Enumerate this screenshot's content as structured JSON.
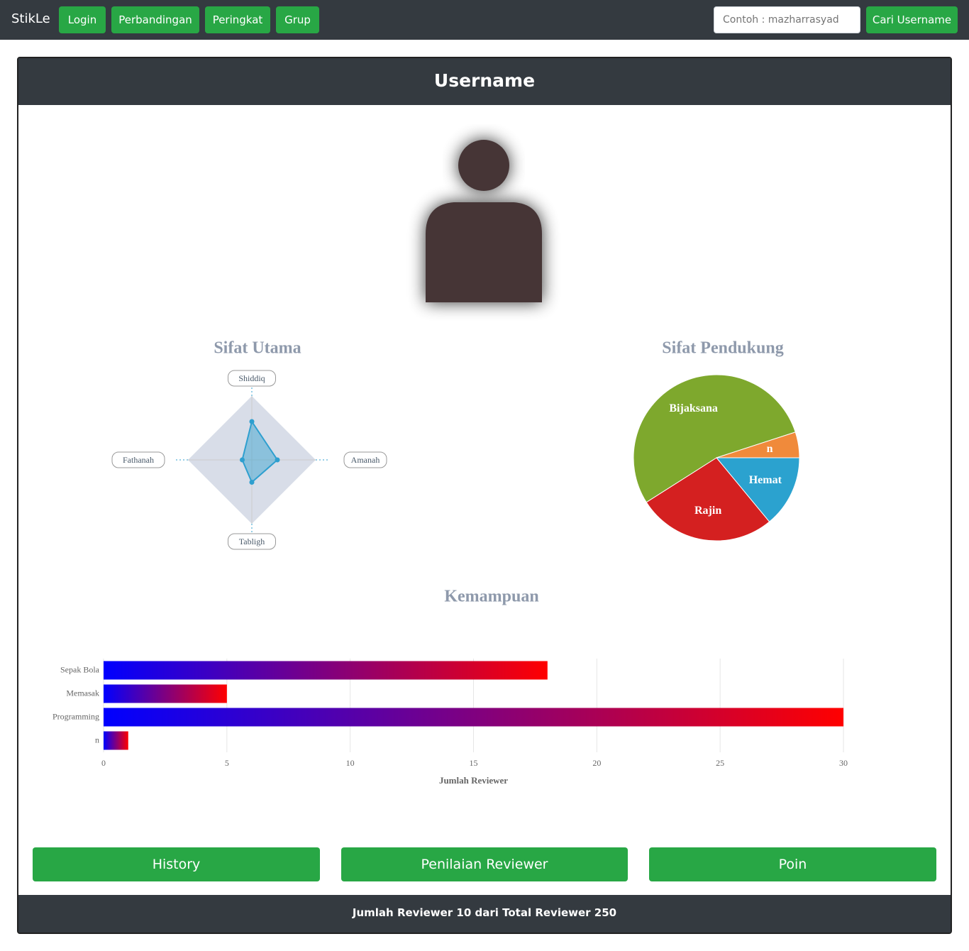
{
  "navbar": {
    "brand": "StikLe",
    "links": [
      "Login",
      "Perbandingan",
      "Peringkat",
      "Grup"
    ],
    "search_placeholder": "Contoh : mazharrasyad",
    "search_button": "Cari Username"
  },
  "card": {
    "title": "Username",
    "buttons": [
      "History",
      "Penilaian Reviewer",
      "Poin"
    ],
    "footer": "Jumlah Reviewer 10 dari Total Reviewer 250"
  },
  "chart_data": [
    {
      "type": "radar",
      "title": "Sifat Utama",
      "categories": [
        "Shiddiq",
        "Amanah",
        "Tabligh",
        "Fathanah"
      ],
      "values": [
        6,
        4,
        3.5,
        1.5
      ],
      "rlim": [
        0,
        10
      ],
      "color": "#2e9fcf"
    },
    {
      "type": "pie",
      "title": "Sifat Pendukung",
      "categories": [
        "Hemat",
        "Rajin",
        "Bijaksana",
        "n"
      ],
      "values": [
        14,
        27,
        54,
        5
      ],
      "colors": [
        "#2ba2cf",
        "#d42020",
        "#7ea82d",
        "#f08a3b"
      ]
    },
    {
      "type": "hbar",
      "title": "Kemampuan",
      "categories": [
        "Sepak Bola",
        "Memasak",
        "Programming",
        "n"
      ],
      "values": [
        18,
        5,
        30,
        1
      ],
      "gradient": [
        "#0000ff",
        "#ff0000"
      ],
      "xlabel": "Jumlah Reviewer",
      "xlim": [
        0,
        30
      ],
      "xticks": [
        0,
        5,
        10,
        15,
        20,
        25,
        30
      ],
      "grid": true
    }
  ]
}
